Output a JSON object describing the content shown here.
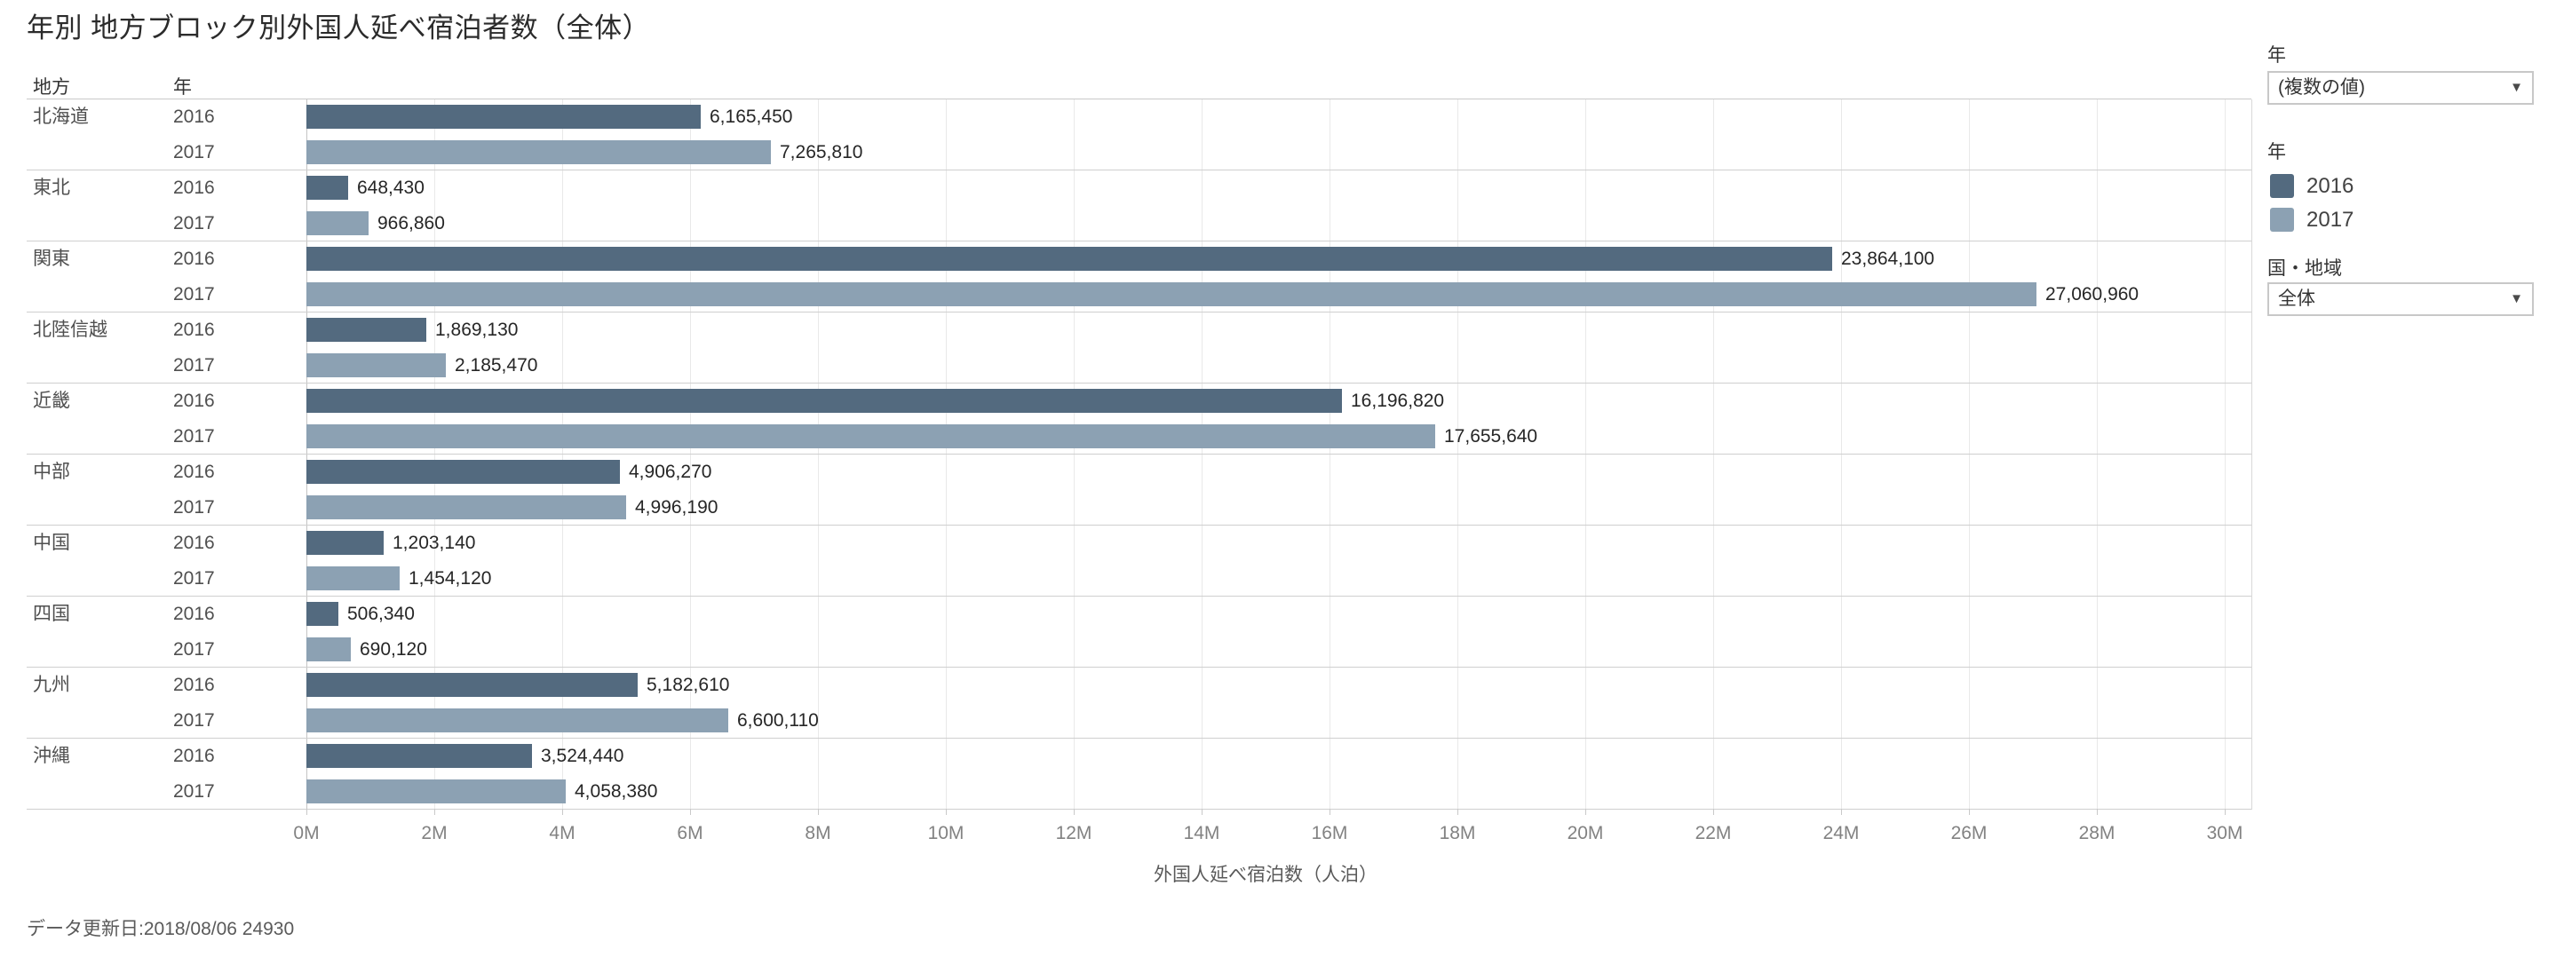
{
  "title": "年別 地方ブロック別外国人延べ宿泊者数（全体）",
  "columns": {
    "region": "地方",
    "year": "年"
  },
  "footer": "データ更新日:2018/08/06 24930",
  "side_panel": {
    "year_filter": {
      "label": "年",
      "value": "(複数の値)",
      "caret": "▼"
    },
    "legend": {
      "title": "年",
      "items": [
        {
          "label": "2016",
          "color": "#536a7f"
        },
        {
          "label": "2017",
          "color": "#8ca1b3"
        }
      ]
    },
    "country_filter": {
      "label": "国・地域",
      "value": "全体",
      "caret": "▼"
    }
  },
  "chart_data": {
    "type": "bar",
    "orientation": "horizontal",
    "title": "年別 地方ブロック別外国人延べ宿泊者数（全体）",
    "xlabel": "外国人延べ宿泊数（人泊）",
    "ylabel": "地方 / 年",
    "xlim": [
      0,
      30000000
    ],
    "grid": true,
    "legend_position": "right",
    "axis_ticks": [
      "0M",
      "2M",
      "4M",
      "6M",
      "8M",
      "10M",
      "12M",
      "14M",
      "16M",
      "18M",
      "20M",
      "22M",
      "24M",
      "26M",
      "28M",
      "30M"
    ],
    "series": [
      {
        "name": "2016",
        "color": "#536a7f"
      },
      {
        "name": "2017",
        "color": "#8ca1b3"
      }
    ],
    "regions": [
      {
        "name": "北海道",
        "values": [
          {
            "year": "2016",
            "value": 6165450,
            "label": "6,165,450"
          },
          {
            "year": "2017",
            "value": 7265810,
            "label": "7,265,810"
          }
        ]
      },
      {
        "name": "東北",
        "values": [
          {
            "year": "2016",
            "value": 648430,
            "label": "648,430"
          },
          {
            "year": "2017",
            "value": 966860,
            "label": "966,860"
          }
        ]
      },
      {
        "name": "関東",
        "values": [
          {
            "year": "2016",
            "value": 23864100,
            "label": "23,864,100"
          },
          {
            "year": "2017",
            "value": 27060960,
            "label": "27,060,960"
          }
        ]
      },
      {
        "name": "北陸信越",
        "values": [
          {
            "year": "2016",
            "value": 1869130,
            "label": "1,869,130"
          },
          {
            "year": "2017",
            "value": 2185470,
            "label": "2,185,470"
          }
        ]
      },
      {
        "name": "近畿",
        "values": [
          {
            "year": "2016",
            "value": 16196820,
            "label": "16,196,820"
          },
          {
            "year": "2017",
            "value": 17655640,
            "label": "17,655,640"
          }
        ]
      },
      {
        "name": "中部",
        "values": [
          {
            "year": "2016",
            "value": 4906270,
            "label": "4,906,270"
          },
          {
            "year": "2017",
            "value": 4996190,
            "label": "4,996,190"
          }
        ]
      },
      {
        "name": "中国",
        "values": [
          {
            "year": "2016",
            "value": 1203140,
            "label": "1,203,140"
          },
          {
            "year": "2017",
            "value": 1454120,
            "label": "1,454,120"
          }
        ]
      },
      {
        "name": "四国",
        "values": [
          {
            "year": "2016",
            "value": 506340,
            "label": "506,340"
          },
          {
            "year": "2017",
            "value": 690120,
            "label": "690,120"
          }
        ]
      },
      {
        "name": "九州",
        "values": [
          {
            "year": "2016",
            "value": 5182610,
            "label": "5,182,610"
          },
          {
            "year": "2017",
            "value": 6600110,
            "label": "6,600,110"
          }
        ]
      },
      {
        "name": "沖縄",
        "values": [
          {
            "year": "2016",
            "value": 3524440,
            "label": "3,524,440"
          },
          {
            "year": "2017",
            "value": 4058380,
            "label": "4,058,380"
          }
        ]
      }
    ]
  }
}
